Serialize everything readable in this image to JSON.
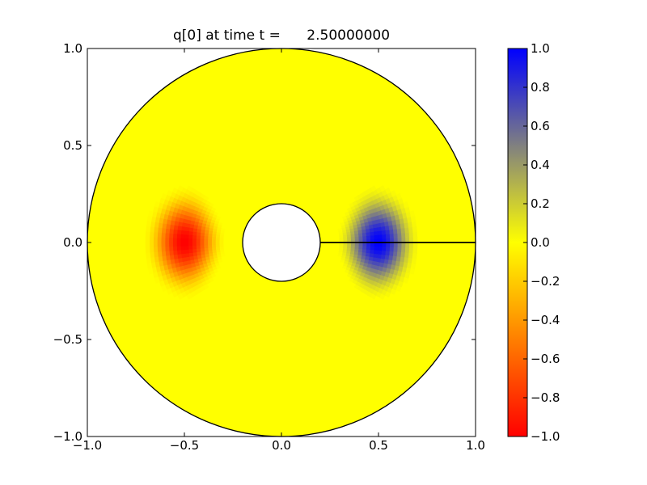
{
  "chart_data": {
    "type": "heatmap",
    "title": "q[0] at time t =      2.50000000",
    "xlabel": "",
    "ylabel": "",
    "xlim": [
      -1.0,
      1.0
    ],
    "ylim": [
      -1.0,
      1.0
    ],
    "x_ticks": [
      "−1.0",
      "−0.5",
      "0.0",
      "0.5",
      "1.0"
    ],
    "y_ticks": [
      "−1.0",
      "−0.5",
      "0.0",
      "0.5",
      "1.0"
    ],
    "x_tick_values": [
      -1.0,
      -0.5,
      0.0,
      0.5,
      1.0
    ],
    "y_tick_values": [
      -1.0,
      -0.5,
      0.0,
      0.5,
      1.0
    ],
    "grid": false,
    "domain": {
      "shape": "annulus",
      "inner_radius": 0.2,
      "outer_radius": 1.0,
      "cut_line": {
        "from": [
          0.2,
          0.0
        ],
        "to": [
          1.0,
          0.0
        ]
      }
    },
    "blobs": [
      {
        "name": "negative",
        "center": [
          -0.5,
          0.0
        ],
        "peak": -1.0,
        "radial_halfwidth": 0.22,
        "angular_halfwidth": 0.6
      },
      {
        "name": "positive",
        "center": [
          0.5,
          0.0
        ],
        "peak": 1.0,
        "radial_halfwidth": 0.22,
        "angular_halfwidth": 0.6
      }
    ],
    "background_value": 0.0,
    "colorbar": {
      "range": [
        -1.0,
        1.0
      ],
      "ticks": [
        "1.0",
        "0.8",
        "0.6",
        "0.4",
        "0.2",
        "0.0",
        "−0.2",
        "−0.4",
        "−0.6",
        "−0.8",
        "−1.0"
      ],
      "tick_values": [
        1.0,
        0.8,
        0.6,
        0.4,
        0.2,
        0.0,
        -0.2,
        -0.4,
        -0.6,
        -0.8,
        -1.0
      ],
      "colormap": [
        {
          "v": -1.0,
          "color": "#ff0000"
        },
        {
          "v": 0.0,
          "color": "#ffff00"
        },
        {
          "v": 0.5,
          "color": "#808080"
        },
        {
          "v": 1.0,
          "color": "#0000ff"
        }
      ]
    }
  }
}
